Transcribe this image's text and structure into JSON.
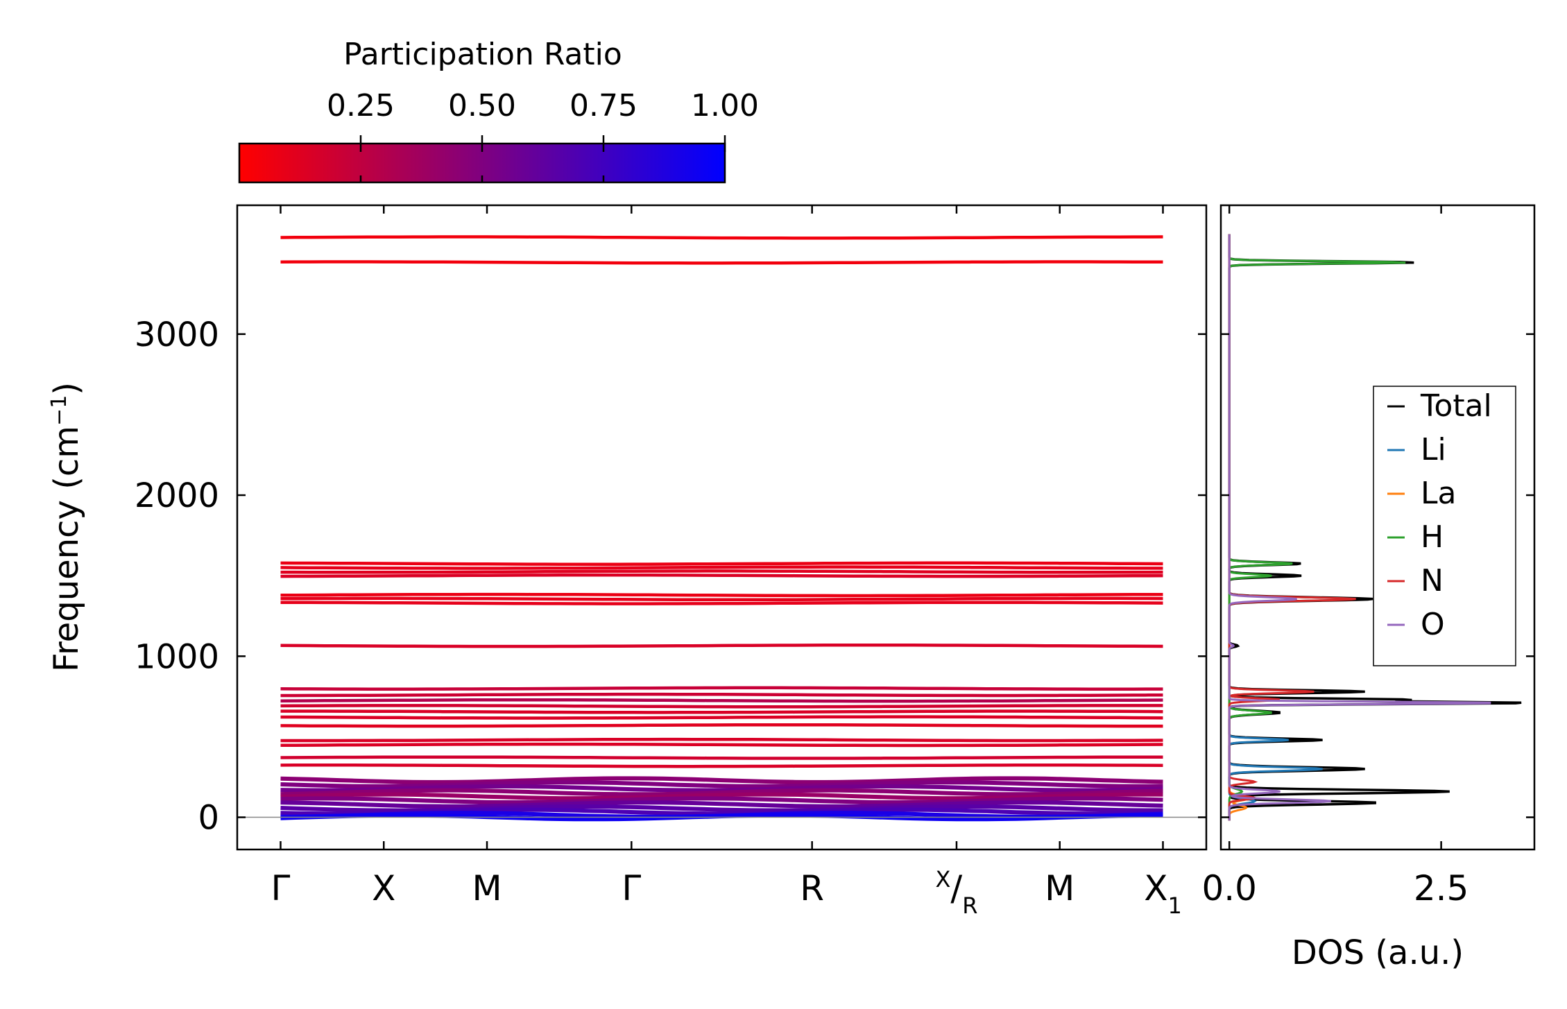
{
  "colorbar": {
    "title": "Participation Ratio",
    "min": 0.0,
    "max": 1.0,
    "ticks": [
      0.25,
      0.5,
      0.75,
      1.0
    ],
    "tick_labels": [
      "0.25",
      "0.50",
      "0.75",
      "1.00"
    ],
    "color_low": "#ff0000",
    "color_high": "#0000ff"
  },
  "chart_data": [
    {
      "type": "line",
      "name": "phonon-band-structure",
      "ylabel": "Frequency (cm⁻¹)",
      "ylabel_parts": [
        "Frequency (cm",
        "−1",
        ")"
      ],
      "ylim": [
        -200,
        3800
      ],
      "yticks": [
        0,
        1000,
        2000,
        3000
      ],
      "ytick_labels": [
        "0",
        "1000",
        "2000",
        "3000"
      ],
      "kpath_positions": [
        0,
        1,
        2,
        3.4,
        5.15,
        6.55,
        7.55,
        8.55
      ],
      "kpath_labels": [
        "Γ",
        "X",
        "M",
        "Γ",
        "R",
        "X/R",
        "M",
        "X₁"
      ],
      "xlim": [
        -0.42,
        8.97
      ],
      "zero_line": true,
      "bands": [
        {
          "freq": 3600,
          "pr": 0.05
        },
        {
          "freq": 3445,
          "pr": 0.05
        },
        {
          "freq": 1575,
          "pr": 0.08
        },
        {
          "freq": 1550,
          "pr": 0.1
        },
        {
          "freq": 1525,
          "pr": 0.12
        },
        {
          "freq": 1500,
          "pr": 0.14
        },
        {
          "freq": 1380,
          "pr": 0.08
        },
        {
          "freq": 1355,
          "pr": 0.1
        },
        {
          "freq": 1330,
          "pr": 0.1
        },
        {
          "freq": 1065,
          "pr": 0.15
        },
        {
          "freq": 800,
          "pr": 0.22
        },
        {
          "freq": 760,
          "pr": 0.2
        },
        {
          "freq": 725,
          "pr": 0.3
        },
        {
          "freq": 690,
          "pr": 0.18
        },
        {
          "freq": 655,
          "pr": 0.15
        },
        {
          "freq": 620,
          "pr": 0.14
        },
        {
          "freq": 570,
          "pr": 0.12
        },
        {
          "freq": 480,
          "pr": 0.15
        },
        {
          "freq": 450,
          "pr": 0.14
        },
        {
          "freq": 370,
          "pr": 0.18
        },
        {
          "freq": 320,
          "pr": 0.15
        },
        {
          "freq": 230,
          "pr": 0.45
        },
        {
          "freq": 205,
          "pr": 0.5
        },
        {
          "freq": 180,
          "pr": 0.55
        },
        {
          "freq": 155,
          "pr": 0.45
        },
        {
          "freq": 130,
          "pr": 0.4
        },
        {
          "freq": 105,
          "pr": 0.5
        },
        {
          "freq": 80,
          "pr": 0.6
        },
        {
          "freq": 55,
          "pr": 0.65
        },
        {
          "freq": 35,
          "pr": 0.7
        },
        {
          "freq": 15,
          "pr": 0.9
        },
        {
          "freq": 0,
          "pr": 0.95
        }
      ]
    },
    {
      "type": "line",
      "name": "density-of-states",
      "xlabel": "DOS (a.u.)",
      "xlim": [
        -0.1,
        3.6
      ],
      "xticks": [
        0.0,
        2.5
      ],
      "xtick_labels": [
        "0.0",
        "2.5"
      ],
      "ylim": [
        -200,
        3800
      ],
      "legend_position": "center-right",
      "series": [
        {
          "name": "Total",
          "color": "#000000",
          "peaks": [
            [
              3445,
              2.2,
              10
            ],
            [
              1575,
              0.85,
              12
            ],
            [
              1500,
              0.85,
              12
            ],
            [
              1355,
              1.7,
              15
            ],
            [
              1065,
              0.1,
              10
            ],
            [
              780,
              1.6,
              12
            ],
            [
              730,
              2.1,
              10
            ],
            [
              710,
              3.5,
              10
            ],
            [
              650,
              0.6,
              15
            ],
            [
              480,
              1.1,
              12
            ],
            [
              300,
              1.6,
              15
            ],
            [
              160,
              2.6,
              15
            ],
            [
              90,
              1.75,
              15
            ]
          ]
        },
        {
          "name": "Li",
          "color": "#1f77b4",
          "peaks": [
            [
              480,
              0.7,
              12
            ],
            [
              300,
              1.1,
              15
            ],
            [
              100,
              0.3,
              20
            ]
          ]
        },
        {
          "name": "La",
          "color": "#ff7f0e",
          "peaks": [
            [
              120,
              0.25,
              20
            ],
            [
              60,
              0.2,
              20
            ]
          ]
        },
        {
          "name": "H",
          "color": "#2ca02c",
          "peaks": [
            [
              3445,
              2.1,
              10
            ],
            [
              1575,
              0.75,
              12
            ],
            [
              1500,
              0.5,
              12
            ],
            [
              650,
              0.5,
              15
            ],
            [
              160,
              0.15,
              20
            ]
          ]
        },
        {
          "name": "N",
          "color": "#d62728",
          "peaks": [
            [
              1355,
              1.5,
              15
            ],
            [
              780,
              1.0,
              12
            ],
            [
              730,
              0.6,
              12
            ],
            [
              220,
              0.3,
              15
            ],
            [
              120,
              0.3,
              15
            ]
          ]
        },
        {
          "name": "O",
          "color": "#9467bd",
          "peaks": [
            [
              1355,
              0.8,
              15
            ],
            [
              710,
              3.2,
              10
            ],
            [
              160,
              0.6,
              15
            ],
            [
              100,
              1.2,
              15
            ],
            [
              1065,
              0.05,
              10
            ]
          ]
        }
      ]
    }
  ]
}
